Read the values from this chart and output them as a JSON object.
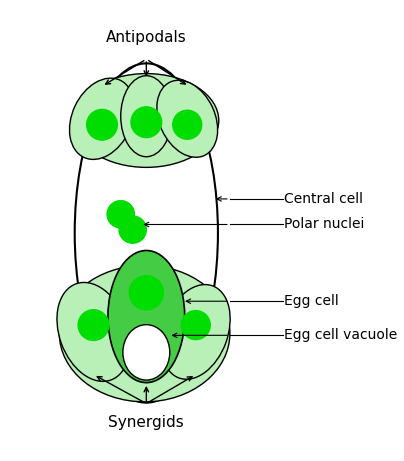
{
  "bg_color": "#ffffff",
  "light_green": "#b8f0b8",
  "dark_green": "#00dd00",
  "medium_green": "#44cc44",
  "figsize": [
    4.04,
    4.61
  ],
  "dpi": 100,
  "title_antipodals": "Antipodals",
  "title_synergids": "Synergids",
  "label_central_cell": "Central cell",
  "label_polar_nuclei": "Polar nuclei",
  "label_egg_cell": "Egg cell",
  "label_egg_vacuole": "Egg cell vacuole"
}
